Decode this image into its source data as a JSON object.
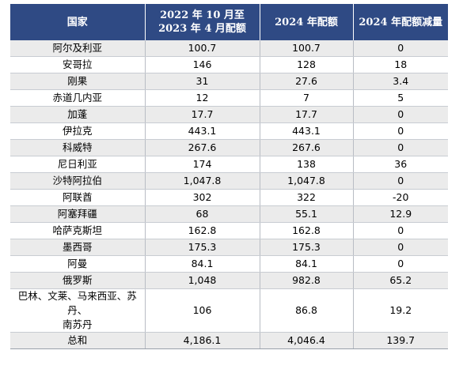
{
  "table": {
    "headers": [
      "国家",
      "2022 年 10 月至\n2023 年 4 月配额",
      "2024 年配额",
      "2024 年配额减量"
    ],
    "header_lines": {
      "col1": "国家",
      "col2_line1": "2022 年 10 月至",
      "col2_line2": "2023 年 4 月配额",
      "col3": "2024 年配额",
      "col4": "2024 年配额减量"
    },
    "rows": [
      {
        "country": "阿尔及利亚",
        "quota_2022_2023": "100.7",
        "quota_2024": "100.7",
        "reduction_2024": "0"
      },
      {
        "country": "安哥拉",
        "quota_2022_2023": "146",
        "quota_2024": "128",
        "reduction_2024": "18"
      },
      {
        "country": "刚果",
        "quota_2022_2023": "31",
        "quota_2024": "27.6",
        "reduction_2024": "3.4"
      },
      {
        "country": "赤道几内亚",
        "quota_2022_2023": "12",
        "quota_2024": "7",
        "reduction_2024": "5"
      },
      {
        "country": "加蓬",
        "quota_2022_2023": "17.7",
        "quota_2024": "17.7",
        "reduction_2024": "0"
      },
      {
        "country": "伊拉克",
        "quota_2022_2023": "443.1",
        "quota_2024": "443.1",
        "reduction_2024": "0"
      },
      {
        "country": "科威特",
        "quota_2022_2023": "267.6",
        "quota_2024": "267.6",
        "reduction_2024": "0"
      },
      {
        "country": "尼日利亚",
        "quota_2022_2023": "174",
        "quota_2024": "138",
        "reduction_2024": "36"
      },
      {
        "country": "沙特阿拉伯",
        "quota_2022_2023": "1,047.8",
        "quota_2024": "1,047.8",
        "reduction_2024": "0"
      },
      {
        "country": "阿联酋",
        "quota_2022_2023": "302",
        "quota_2024": "322",
        "reduction_2024": "-20"
      },
      {
        "country": "阿塞拜疆",
        "quota_2022_2023": "68",
        "quota_2024": "55.1",
        "reduction_2024": "12.9"
      },
      {
        "country": "哈萨克斯坦",
        "quota_2022_2023": "162.8",
        "quota_2024": "162.8",
        "reduction_2024": "0"
      },
      {
        "country": "墨西哥",
        "quota_2022_2023": "175.3",
        "quota_2024": "175.3",
        "reduction_2024": "0"
      },
      {
        "country": "阿曼",
        "quota_2022_2023": "84.1",
        "quota_2024": "84.1",
        "reduction_2024": "0"
      },
      {
        "country": "俄罗斯",
        "quota_2022_2023": "1,048",
        "quota_2024": "982.8",
        "reduction_2024": "65.2"
      },
      {
        "country_line1": "巴林、文莱、马来西亚、苏丹、",
        "country_line2": "南苏丹",
        "quota_2022_2023": "106",
        "quota_2024": "86.8",
        "reduction_2024": "19.2"
      },
      {
        "country": "总和",
        "quota_2022_2023": "4,186.1",
        "quota_2024": "4,046.4",
        "reduction_2024": "139.7"
      }
    ]
  }
}
